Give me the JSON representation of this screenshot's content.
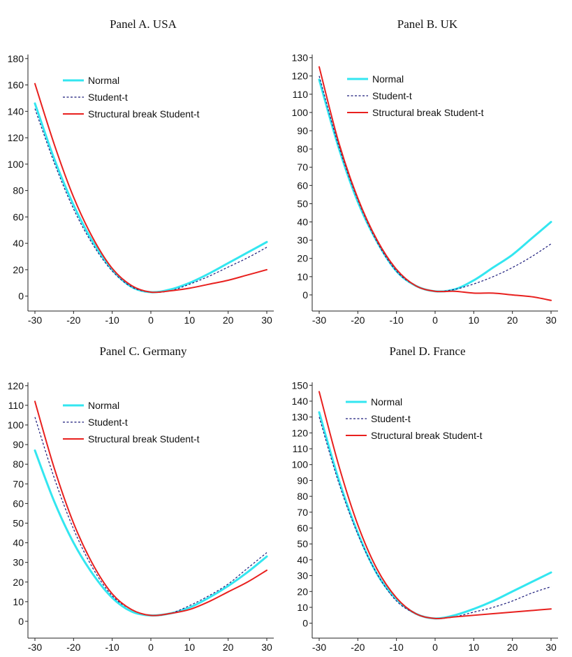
{
  "chart_data": [
    {
      "type": "line",
      "title": "Panel A. USA",
      "x": [
        -30,
        -25,
        -20,
        -15,
        -10,
        -5,
        0,
        5,
        10,
        15,
        20,
        25,
        30
      ],
      "xticks": [
        -30,
        -20,
        -10,
        0,
        10,
        20,
        30
      ],
      "yticks": [
        0,
        20,
        40,
        60,
        80,
        100,
        120,
        140,
        160,
        180
      ],
      "xlim": [
        -30,
        30
      ],
      "ylim": [
        -6,
        182
      ],
      "legend_position": "top-left",
      "series": [
        {
          "name": "Normal",
          "color": "#33e6f0",
          "dash": "solid",
          "values": [
            146,
            104,
            69,
            41,
            20,
            7,
            3,
            5,
            10,
            17,
            25,
            33,
            41
          ]
        },
        {
          "name": "Student-t",
          "color": "#1a1a7a",
          "dash": "dotted",
          "values": [
            142,
            101,
            66,
            39,
            19,
            7,
            3,
            4,
            9,
            15,
            22,
            29,
            37
          ]
        },
        {
          "name": "Structural break Student-t",
          "color": "#e8201e",
          "dash": "solid",
          "values": [
            161,
            115,
            75,
            44,
            21,
            8,
            3,
            4,
            6,
            9,
            12,
            16,
            20
          ]
        }
      ]
    },
    {
      "type": "line",
      "title": "Panel B. UK",
      "x": [
        -30,
        -25,
        -20,
        -15,
        -10,
        -5,
        0,
        5,
        10,
        15,
        20,
        25,
        30
      ],
      "xticks": [
        -30,
        -20,
        -10,
        0,
        10,
        20,
        30
      ],
      "yticks": [
        0,
        10,
        20,
        30,
        40,
        50,
        60,
        70,
        80,
        90,
        100,
        110,
        120,
        130
      ],
      "xlim": [
        -30,
        30
      ],
      "ylim": [
        -5,
        131
      ],
      "legend_position": "top-left",
      "series": [
        {
          "name": "Normal",
          "color": "#33e6f0",
          "dash": "solid",
          "values": [
            118,
            81,
            51,
            29,
            13,
            5,
            2,
            3,
            8,
            15,
            22,
            31,
            40
          ]
        },
        {
          "name": "Student-t",
          "color": "#1a1a7a",
          "dash": "dotted",
          "values": [
            120,
            82,
            52,
            29,
            13,
            5,
            2,
            3,
            6,
            10,
            15,
            21,
            28
          ]
        },
        {
          "name": "Structural break Student-t",
          "color": "#e8201e",
          "dash": "solid",
          "values": [
            125,
            84,
            53,
            30,
            14,
            5,
            2,
            2,
            1,
            1,
            0,
            -1,
            -3
          ]
        }
      ]
    },
    {
      "type": "line",
      "title": "Panel C. Germany",
      "x": [
        -30,
        -25,
        -20,
        -15,
        -10,
        -5,
        0,
        5,
        10,
        15,
        20,
        25,
        30
      ],
      "xticks": [
        -30,
        -20,
        -10,
        0,
        10,
        20,
        30
      ],
      "yticks": [
        0,
        10,
        20,
        30,
        40,
        50,
        60,
        70,
        80,
        90,
        100,
        110,
        120
      ],
      "xlim": [
        -30,
        30
      ],
      "ylim": [
        -5,
        121
      ],
      "legend_position": "top-left",
      "series": [
        {
          "name": "Normal",
          "color": "#33e6f0",
          "dash": "solid",
          "values": [
            87,
            61,
            40,
            24,
            12,
            5,
            3,
            4,
            7,
            12,
            18,
            25,
            33
          ]
        },
        {
          "name": "Student-t",
          "color": "#1a1a7a",
          "dash": "dotted",
          "values": [
            104,
            73,
            47,
            27,
            13,
            6,
            3,
            4,
            8,
            13,
            19,
            27,
            35
          ]
        },
        {
          "name": "Structural break Student-t",
          "color": "#e8201e",
          "dash": "solid",
          "values": [
            112,
            78,
            50,
            29,
            14,
            6,
            3,
            4,
            6,
            10,
            15,
            20,
            26
          ]
        }
      ]
    },
    {
      "type": "line",
      "title": "Panel D. France",
      "x": [
        -30,
        -25,
        -20,
        -15,
        -10,
        -5,
        0,
        5,
        10,
        15,
        20,
        25,
        30
      ],
      "xticks": [
        -30,
        -20,
        -10,
        0,
        10,
        20,
        30
      ],
      "yticks": [
        0,
        10,
        20,
        30,
        40,
        50,
        60,
        70,
        80,
        90,
        100,
        110,
        120,
        130,
        140,
        150
      ],
      "xlim": [
        -30,
        30
      ],
      "ylim": [
        -5,
        151
      ],
      "legend_position": "top-left",
      "series": [
        {
          "name": "Normal",
          "color": "#33e6f0",
          "dash": "solid",
          "values": [
            133,
            91,
            57,
            31,
            15,
            6,
            3,
            5,
            9,
            14,
            20,
            26,
            32
          ]
        },
        {
          "name": "Student-t",
          "color": "#1a1a7a",
          "dash": "dotted",
          "values": [
            130,
            89,
            56,
            31,
            14,
            6,
            3,
            4,
            7,
            10,
            14,
            19,
            23
          ]
        },
        {
          "name": "Structural break Student-t",
          "color": "#e8201e",
          "dash": "solid",
          "values": [
            146,
            100,
            62,
            34,
            16,
            6,
            3,
            4,
            5,
            6,
            7,
            8,
            9
          ]
        }
      ]
    }
  ]
}
